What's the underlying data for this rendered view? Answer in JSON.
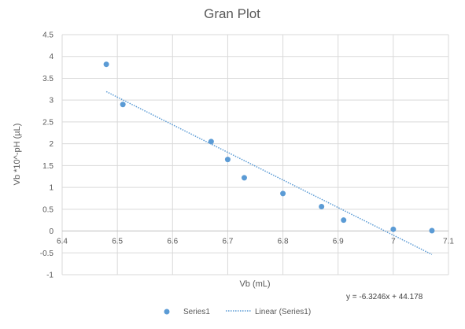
{
  "chart_data": {
    "type": "scatter",
    "title": "Gran Plot",
    "xlabel": "Vb (mL)",
    "ylabel": "Vb *10^-pH  (µL)",
    "xlim": [
      6.4,
      7.1
    ],
    "ylim": [
      -1,
      4.5
    ],
    "xticks": [
      6.4,
      6.5,
      6.6,
      6.7,
      6.8,
      6.9,
      7,
      7.1
    ],
    "xtick_labels": [
      "6.4",
      "6.5",
      "6.6",
      "6.7",
      "6.8",
      "6.9",
      "7",
      "7.1"
    ],
    "yticks": [
      -1,
      -0.5,
      0,
      0.5,
      1,
      1.5,
      2,
      2.5,
      3,
      3.5,
      4,
      4.5
    ],
    "ytick_labels": [
      "-1",
      "-0.5",
      "0",
      "0.5",
      "1",
      "1.5",
      "2",
      "2.5",
      "3",
      "3.5",
      "4",
      "4.5"
    ],
    "grid": true,
    "legend_position": "bottom",
    "series": [
      {
        "name": "Series1",
        "color": "#5b9bd5",
        "points": [
          {
            "x": 6.48,
            "y": 3.82
          },
          {
            "x": 6.51,
            "y": 2.9
          },
          {
            "x": 6.67,
            "y": 2.05
          },
          {
            "x": 6.7,
            "y": 1.64
          },
          {
            "x": 6.73,
            "y": 1.22
          },
          {
            "x": 6.8,
            "y": 0.86
          },
          {
            "x": 6.87,
            "y": 0.56
          },
          {
            "x": 6.91,
            "y": 0.25
          },
          {
            "x": 7.0,
            "y": 0.04
          },
          {
            "x": 7.07,
            "y": 0.01
          }
        ]
      }
    ],
    "trendline": {
      "name": "Linear (Series1)",
      "color": "#5b9bd5",
      "slope": -6.3246,
      "intercept": 44.178,
      "x_start": 6.48,
      "x_end": 7.07,
      "equation": "y = -6.3246x + 44.178"
    }
  }
}
